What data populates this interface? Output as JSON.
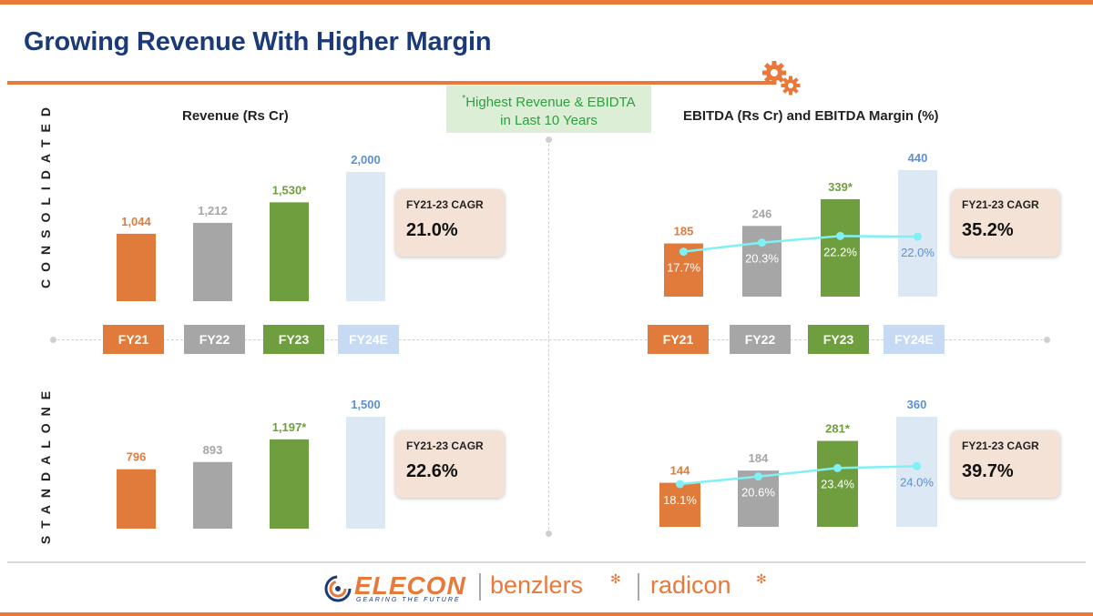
{
  "slide": {
    "title": "Growing Revenue With Higher Margin",
    "note_star": "*",
    "note_line1": "Highest Revenue & EBIDTA",
    "note_line2": "in Last 10 Years",
    "consolidated_label": "CONSOLIDATED",
    "standalone_label": "STANDALONE"
  },
  "colors": {
    "accent": "#e8793a",
    "fy21": "#e07b3c",
    "fy22": "#a6a6a6",
    "fy23": "#6f9e3e",
    "fy24e": "#dde8f5",
    "fy24e_text": "#5b8fd6",
    "margin_line": "#7ff0f4",
    "cagr_bg": "#f5e2d6"
  },
  "years": [
    {
      "label": "FY21",
      "bg": "#e07b3c",
      "fg": "#ffffff"
    },
    {
      "label": "FY22",
      "bg": "#a6a6a6",
      "fg": "#ffffff"
    },
    {
      "label": "FY23",
      "bg": "#6f9e3e",
      "fg": "#ffffff"
    },
    {
      "label": "FY24E",
      "bg": "#c6dbf3",
      "fg": "#ffffff"
    }
  ],
  "cagr": {
    "rev_cons": {
      "label": "FY21-23 CAGR",
      "value": "21.0%"
    },
    "ebitda_cons": {
      "label": "FY21-23 CAGR",
      "value": "35.2%"
    },
    "rev_stand": {
      "label": "FY21-23 CAGR",
      "value": "22.6%"
    },
    "ebitda_stand": {
      "label": "FY21-23 CAGR",
      "value": "39.7%"
    }
  },
  "footer": {
    "elecon": "ELECON",
    "tagline": "GEARING THE FUTURE",
    "benzlers": "benzlers",
    "radicon": "radicon"
  },
  "chart_data": [
    {
      "id": "revenue-consolidated",
      "type": "bar",
      "title": "Revenue (Rs Cr)",
      "categories": [
        "FY21",
        "FY22",
        "FY23",
        "FY24E"
      ],
      "values": [
        1044,
        1212,
        1530,
        2000
      ],
      "labels": [
        "1,044",
        "1,212",
        "1,530*",
        "2,000"
      ],
      "ylim": [
        0,
        2000
      ]
    },
    {
      "id": "ebitda-consolidated",
      "type": "bar",
      "title": "EBITDA (Rs Cr) and EBITDA Margin (%)",
      "categories": [
        "FY21",
        "FY22",
        "FY23",
        "FY24E"
      ],
      "values": [
        185,
        246,
        339,
        440
      ],
      "labels": [
        "185",
        "246",
        "339*",
        "440"
      ],
      "margin": [
        17.7,
        20.3,
        22.2,
        22.0
      ],
      "margin_labels": [
        "17.7%",
        "20.3%",
        "22.2%",
        "22.0%"
      ],
      "ylim": [
        0,
        440
      ]
    },
    {
      "id": "revenue-standalone",
      "type": "bar",
      "title": "",
      "categories": [
        "FY21",
        "FY22",
        "FY23",
        "FY24E"
      ],
      "values": [
        796,
        893,
        1197,
        1500
      ],
      "labels": [
        "796",
        "893",
        "1,197*",
        "1,500"
      ],
      "ylim": [
        0,
        1500
      ]
    },
    {
      "id": "ebitda-standalone",
      "type": "bar",
      "title": "",
      "categories": [
        "FY21",
        "FY22",
        "FY23",
        "FY24E"
      ],
      "values": [
        144,
        184,
        281,
        360
      ],
      "labels": [
        "144",
        "184",
        "281*",
        "360"
      ],
      "margin": [
        18.1,
        20.6,
        23.4,
        24.0
      ],
      "margin_labels": [
        "18.1%",
        "20.6%",
        "23.4%",
        "24.0%"
      ],
      "ylim": [
        0,
        360
      ]
    }
  ]
}
